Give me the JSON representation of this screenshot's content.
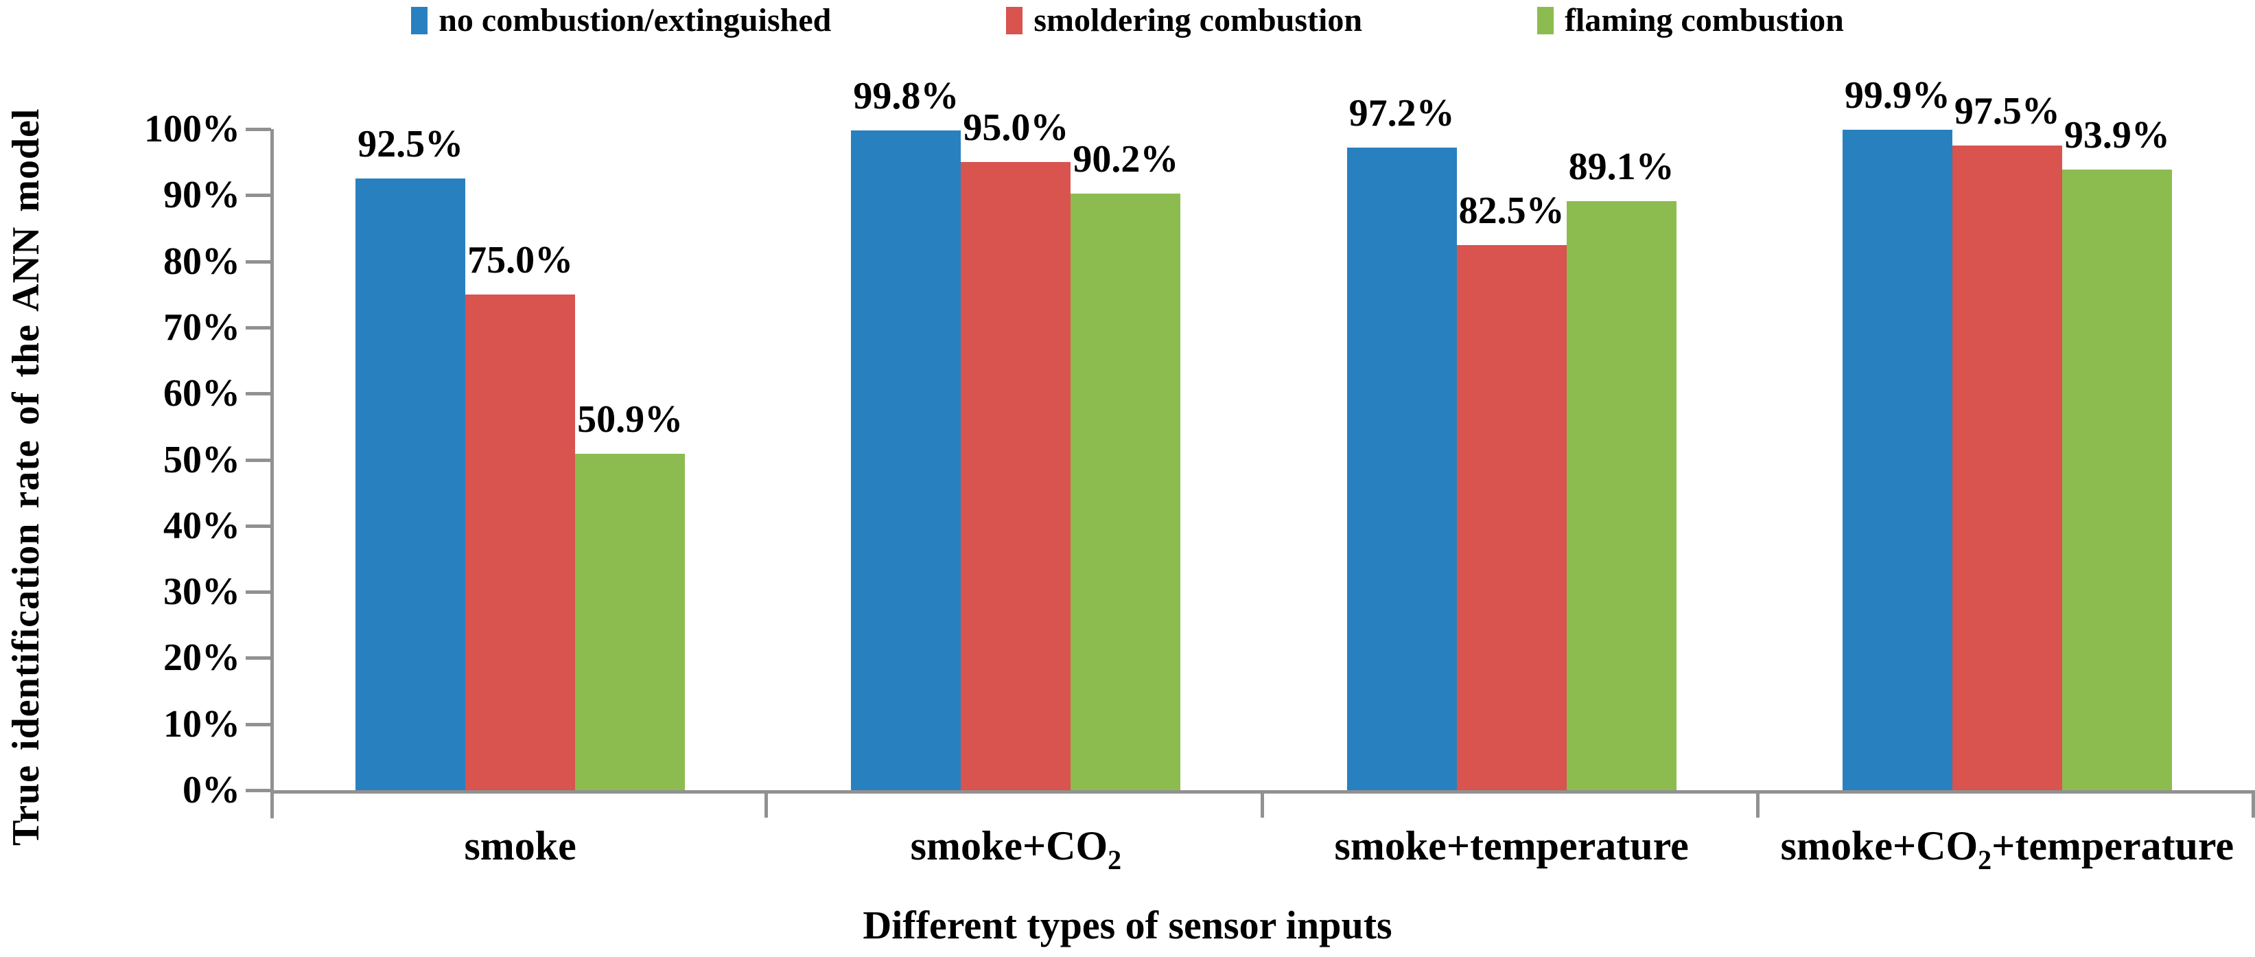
{
  "chart_data": {
    "type": "bar",
    "title": "",
    "xlabel": "Different types of sensor inputs",
    "ylabel": "True identification rate of the ANN model",
    "ylim": [
      0,
      100
    ],
    "y_tick_step_percent": 10,
    "grid": false,
    "legend_position": "top",
    "value_format": "percent",
    "categories": [
      "smoke",
      "smoke+CO2",
      "smoke+temperature",
      "smoke+CO2+temperature"
    ],
    "series": [
      {
        "name": "no combustion/extinguished",
        "color": "#2980BE",
        "values": [
          92.5,
          99.8,
          97.2,
          99.9
        ],
        "display_labels": [
          "92.5%",
          "99.8%",
          "97.2%",
          "99.9%"
        ]
      },
      {
        "name": "smoldering combustion",
        "color": "#D9534F",
        "values": [
          75.0,
          95.0,
          82.5,
          97.5
        ],
        "display_labels": [
          "75.0%",
          "95.0%",
          "82.5%",
          "97.5%"
        ]
      },
      {
        "name": "flaming combustion",
        "color": "#8CBC50",
        "values": [
          50.9,
          90.2,
          89.1,
          93.9
        ],
        "display_labels": [
          "50.9%",
          "90.2%",
          "89.1%",
          "93.9%"
        ]
      }
    ]
  },
  "y_axis": {
    "tick_labels": [
      "100%",
      "90%",
      "80%",
      "70%",
      "60%",
      "50%",
      "40%",
      "30%",
      "20%",
      "10%",
      "0%"
    ]
  },
  "x_axis": {
    "title": "Different types of sensor inputs",
    "category_labels": [
      {
        "pre": "smoke",
        "sub": "",
        "post": ""
      },
      {
        "pre": "smoke+CO",
        "sub": "2",
        "post": ""
      },
      {
        "pre": "smoke+temperature",
        "sub": "",
        "post": ""
      },
      {
        "pre": "smoke+CO",
        "sub": "2",
        "post": "+temperature"
      }
    ]
  },
  "colors": {
    "axis": "#919191",
    "background": "#FFFFFF",
    "series_blue": "#2980BE",
    "series_red": "#D9534F",
    "series_green": "#8CBC50"
  }
}
